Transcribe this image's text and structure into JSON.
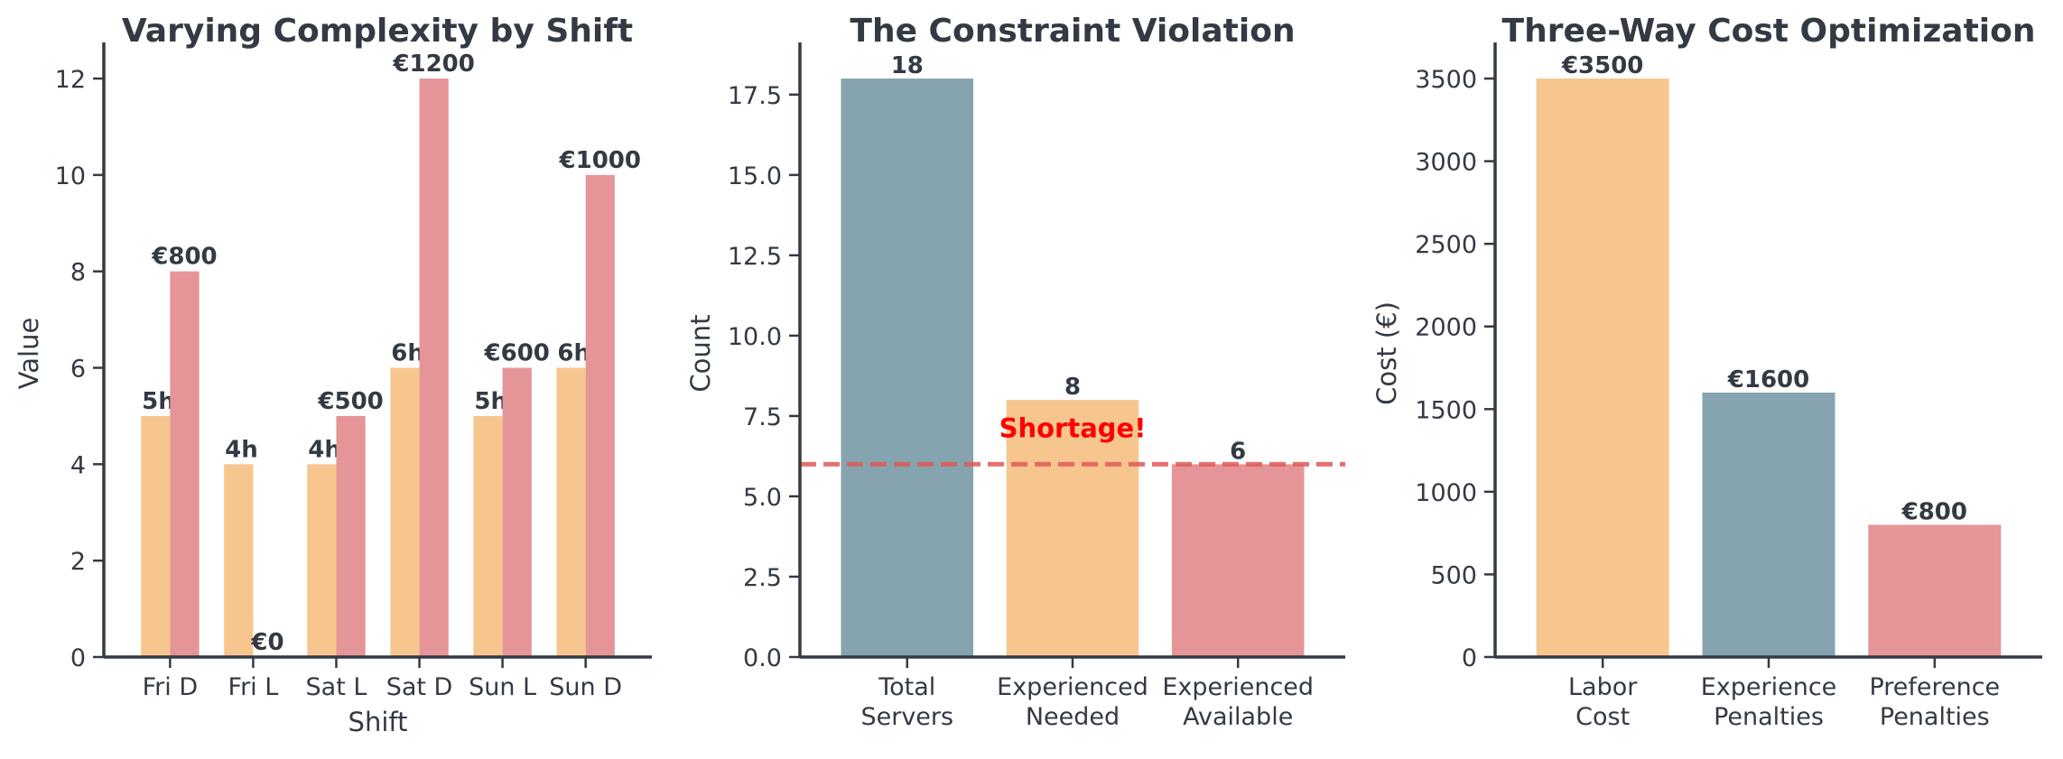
{
  "colors": {
    "orange": "#f7c68f",
    "red": "#e59597",
    "slate": "#86a4af",
    "text": "#333a44",
    "annotation": "#ff0000",
    "reference_line": "#e05a5a"
  },
  "chart_data": [
    {
      "type": "bar",
      "title": "Varying Complexity by Shift",
      "xlabel": "Shift",
      "ylabel": "Value",
      "categories": [
        "Fri D",
        "Fri L",
        "Sat L",
        "Sat D",
        "Sun L",
        "Sun D"
      ],
      "series": [
        {
          "color": "orange",
          "values": [
            5,
            4,
            4,
            6,
            5,
            6
          ],
          "labels": [
            "5h",
            "4h",
            "4h",
            "6h",
            "5h",
            "6h"
          ]
        },
        {
          "color": "red",
          "values": [
            8,
            0,
            5,
            12,
            6,
            10
          ],
          "labels": [
            "€800",
            "€0",
            "€500",
            "€1200",
            "€600",
            "€1000"
          ]
        }
      ],
      "ylim": [
        0,
        12.6
      ],
      "yticks": [
        0,
        2,
        4,
        6,
        8,
        10,
        12
      ],
      "ytick_labels": [
        "0",
        "2",
        "4",
        "6",
        "8",
        "10",
        "12"
      ],
      "grid": false
    },
    {
      "type": "bar",
      "title": "The Constraint Violation",
      "xlabel": "",
      "ylabel": "Count",
      "categories": [
        [
          "Total",
          "Servers"
        ],
        [
          "Experienced",
          "Needed"
        ],
        [
          "Experienced",
          "Available"
        ]
      ],
      "values": [
        18,
        8,
        6
      ],
      "value_labels": [
        "18",
        "8",
        "6"
      ],
      "bar_colors": [
        "slate",
        "orange",
        "red"
      ],
      "reference_line": {
        "y": 6,
        "style": "dashed"
      },
      "annotation": {
        "text": "Shortage!",
        "x_index": 1,
        "y": 6.5
      },
      "ylim": [
        0,
        18.9
      ],
      "yticks": [
        0,
        2.5,
        5,
        7.5,
        10,
        12.5,
        15,
        17.5
      ],
      "ytick_labels": [
        "0.0",
        "2.5",
        "5.0",
        "7.5",
        "10.0",
        "12.5",
        "15.0",
        "17.5"
      ],
      "grid": false
    },
    {
      "type": "bar",
      "title": "Three-Way Cost Optimization",
      "xlabel": "",
      "ylabel": "Cost (€)",
      "categories": [
        [
          "Labor",
          "Cost"
        ],
        [
          "Experience",
          "Penalties"
        ],
        [
          "Preference",
          "Penalties"
        ]
      ],
      "values": [
        3500,
        1600,
        800
      ],
      "value_labels": [
        "€3500",
        "€1600",
        "€800"
      ],
      "bar_colors": [
        "orange",
        "slate",
        "red"
      ],
      "ylim": [
        0,
        3675
      ],
      "yticks": [
        0,
        500,
        1000,
        1500,
        2000,
        2500,
        3000,
        3500
      ],
      "ytick_labels": [
        "0",
        "500",
        "1000",
        "1500",
        "2000",
        "2500",
        "3000",
        "3500"
      ],
      "grid": false
    }
  ]
}
